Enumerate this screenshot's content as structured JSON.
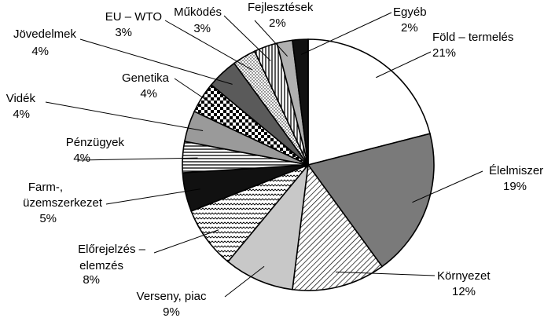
{
  "chart_data": {
    "type": "pie",
    "title": "",
    "start": "top",
    "direction": "clockwise",
    "slices": [
      {
        "label": "Föld – termelés",
        "value": 21,
        "value_label": "21%",
        "color": "#ffffff"
      },
      {
        "label": "Élelmiszer",
        "value": 19,
        "value_label": "19%",
        "color": "#7a7a7a"
      },
      {
        "label": "Környezet",
        "value": 12,
        "value_label": "12%",
        "color": "#ffffff",
        "pattern": "diagonal"
      },
      {
        "label": "Verseny, piac",
        "value": 9,
        "value_label": "9%",
        "color": "#c8c8c8"
      },
      {
        "label": "Előrejelzés – elemzés",
        "value": 8,
        "value_label": "8%",
        "color": "#ffffff",
        "pattern": "waves"
      },
      {
        "label": "Farm-, üzemszerkezet",
        "value": 5,
        "value_label": "5%",
        "color": "#111111"
      },
      {
        "label": "Pénzügyek",
        "value": 4,
        "value_label": "4%",
        "color": "#ffffff",
        "pattern": "horizontal"
      },
      {
        "label": "Vidék",
        "value": 4,
        "value_label": "4%",
        "color": "#9a9a9a"
      },
      {
        "label": "Genetika",
        "value": 4,
        "value_label": "4%",
        "color": "#ffffff",
        "pattern": "checker"
      },
      {
        "label": "Jövedelmek",
        "value": 4,
        "value_label": "4%",
        "color": "#5a5a5a"
      },
      {
        "label": "EU – WTO",
        "value": 3,
        "value_label": "3%",
        "color": "#ffffff",
        "pattern": "dots"
      },
      {
        "label": "Működés",
        "value": 3,
        "value_label": "3%",
        "color": "#ffffff",
        "pattern": "vertical"
      },
      {
        "label": "Fejlesztések",
        "value": 2,
        "value_label": "2%",
        "color": "#b0b0b0"
      },
      {
        "label": "Egyéb",
        "value": 2,
        "value_label": "2%",
        "color": "#111111"
      }
    ]
  }
}
